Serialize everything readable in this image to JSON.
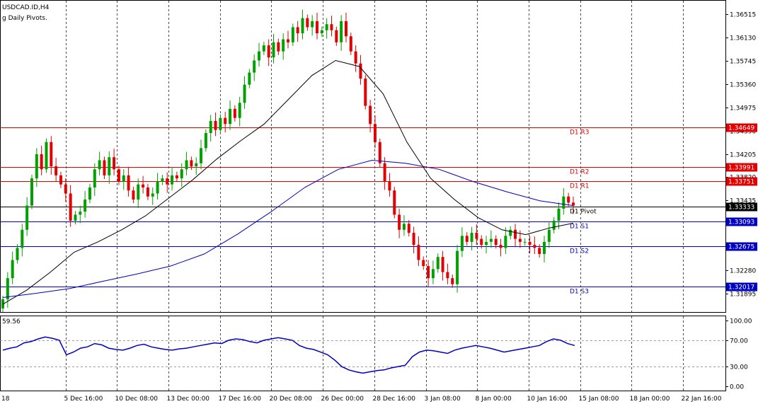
{
  "chart_data": {
    "type": "candlestick",
    "header": {
      "symbol_line": "USDCAD.ID,H4",
      "indicator_line": "g Daily Pivots."
    },
    "colors": {
      "bull": "#00a000",
      "bear": "#e00000",
      "ma_fast": "#000000",
      "ma_slow": "#0000c0",
      "resistance": "#e00000",
      "support": "#0000c0",
      "pivot": "#000000",
      "rsi": "#0000c0",
      "grid": "#000000"
    },
    "price_axis": {
      "ylim": [
        1.3159,
        1.3675
      ],
      "ticks": [
        "1.36515",
        "1.36130",
        "1.35745",
        "1.35360",
        "1.34975",
        "1.34590",
        "1.34205",
        "1.33820",
        "1.33435",
        "1.33050",
        "1.32665",
        "1.32280",
        "1.31895"
      ]
    },
    "x_axis": {
      "labels": [
        "18",
        "5 Dec 16:00",
        "10 Dec 08:00",
        "13 Dec 00:00",
        "17 Dec 16:00",
        "20 Dec 08:00",
        "26 Dec 00:00",
        "28 Dec 16:00",
        "3 Jan 08:00",
        "8 Jan 00:00",
        "10 Jan 16:00",
        "15 Jan 08:00",
        "18 Jan 00:00",
        "22 Jan 16:00"
      ]
    },
    "pivots": [
      {
        "name": "R3",
        "label": "D1 R3",
        "value": 1.34649,
        "tag": "1.34649",
        "kind": "resistance"
      },
      {
        "name": "R2",
        "label": "D1 R2",
        "value": 1.33991,
        "tag": "1.33991",
        "kind": "resistance"
      },
      {
        "name": "R1",
        "label": "D1 R1",
        "value": 1.33751,
        "tag": "1.33751",
        "kind": "resistance"
      },
      {
        "name": "Pivot",
        "label": "D1 Pivot",
        "value": 1.33333,
        "tag": "1.33333",
        "kind": "pivot"
      },
      {
        "name": "S1",
        "label": "D1 S1",
        "value": 1.33093,
        "tag": "1.33093",
        "kind": "support"
      },
      {
        "name": "S2",
        "label": "D1 S2",
        "value": 1.32675,
        "tag": "1.32675",
        "kind": "support"
      },
      {
        "name": "S3",
        "label": "D1 S3",
        "value": 1.32017,
        "tag": "1.32017",
        "kind": "support"
      }
    ],
    "closes": [
      1.318,
      1.3215,
      1.3245,
      1.3265,
      1.3295,
      1.3335,
      1.338,
      1.342,
      1.3395,
      1.344,
      1.34,
      1.3385,
      1.337,
      1.3355,
      1.331,
      1.332,
      1.3325,
      1.3345,
      1.3365,
      1.3395,
      1.341,
      1.3385,
      1.3415,
      1.3395,
      1.3375,
      1.3385,
      1.336,
      1.3345,
      1.337,
      1.3365,
      1.335,
      1.3355,
      1.3375,
      1.338,
      1.337,
      1.3385,
      1.338,
      1.3395,
      1.341,
      1.34,
      1.3405,
      1.343,
      1.3455,
      1.3475,
      1.346,
      1.348,
      1.347,
      1.3495,
      1.348,
      1.3505,
      1.3535,
      1.3555,
      1.3575,
      1.359,
      1.36,
      1.358,
      1.3605,
      1.359,
      1.361,
      1.3605,
      1.363,
      1.362,
      1.3645,
      1.363,
      1.364,
      1.362,
      1.3625,
      1.3635,
      1.3625,
      1.3605,
      1.364,
      1.3615,
      1.359,
      1.357,
      1.3545,
      1.35,
      1.347,
      1.344,
      1.3405,
      1.3375,
      1.336,
      1.332,
      1.3295,
      1.3305,
      1.329,
      1.327,
      1.3245,
      1.3235,
      1.3215,
      1.323,
      1.325,
      1.3225,
      1.3215,
      1.3205,
      1.326,
      1.3285,
      1.3275,
      1.329,
      1.328,
      1.327,
      1.3275,
      1.328,
      1.327,
      1.3265,
      1.3285,
      1.3295,
      1.328,
      1.3275,
      1.3275,
      1.327,
      1.3265,
      1.3255,
      1.3275,
      1.3295,
      1.331,
      1.333,
      1.335,
      1.334,
      1.3335
    ],
    "ma_fast": {
      "values": [
        1.3172,
        1.3195,
        1.3225,
        1.3258,
        1.3275,
        1.3295,
        1.3318,
        1.3348,
        1.3378,
        1.3412,
        1.3442,
        1.347,
        1.351,
        1.355,
        1.3575,
        1.3565,
        1.352,
        1.344,
        1.338,
        1.3345,
        1.3315,
        1.3295,
        1.3287,
        1.3298,
        1.3306
      ]
    },
    "ma_slow": {
      "values": [
        1.3183,
        1.319,
        1.3198,
        1.321,
        1.3222,
        1.3235,
        1.3255,
        1.3288,
        1.3325,
        1.3365,
        1.3395,
        1.341,
        1.3405,
        1.3395,
        1.3375,
        1.3358,
        1.3343,
        1.3335
      ]
    },
    "rsi": {
      "current_label": "59.56",
      "ylim": [
        0,
        100
      ],
      "ticks": [
        "100.00",
        "70.00",
        "30.00",
        "0.00"
      ],
      "levels": [
        70,
        30
      ],
      "values": [
        55,
        58,
        60,
        66,
        68,
        72,
        75,
        73,
        70,
        48,
        52,
        58,
        60,
        65,
        63,
        58,
        56,
        55,
        58,
        62,
        64,
        60,
        58,
        56,
        55,
        57,
        58,
        60,
        62,
        64,
        66,
        65,
        70,
        72,
        71,
        68,
        66,
        70,
        72,
        74,
        72,
        70,
        62,
        58,
        56,
        52,
        48,
        40,
        30,
        25,
        22,
        20,
        22,
        24,
        25,
        28,
        30,
        32,
        45,
        52,
        55,
        54,
        52,
        50,
        55,
        58,
        60,
        62,
        60,
        58,
        55,
        52,
        54,
        56,
        58,
        60,
        62,
        68,
        72,
        70,
        65,
        62
      ]
    },
    "aux_marker_text": "▲▼"
  }
}
